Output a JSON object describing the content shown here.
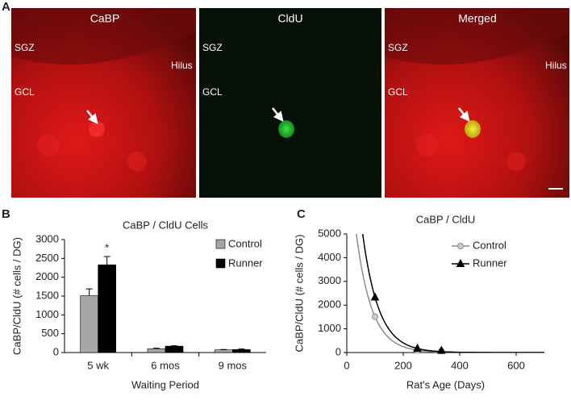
{
  "figure": {
    "panel_a": {
      "letter": "A",
      "images": [
        {
          "title": "CaBP",
          "labels": [
            "SGZ",
            "Hilus",
            "GCL"
          ]
        },
        {
          "title": "CldU",
          "labels": [
            "SGZ",
            "GCL"
          ]
        },
        {
          "title": "Merged",
          "labels": [
            "SGZ",
            "Hilus",
            "GCL"
          ]
        }
      ]
    },
    "panel_b_letter": "B",
    "panel_c_letter": "C"
  },
  "chart_data": [
    {
      "type": "bar",
      "title": "CaBP / CldU Cells",
      "y_label": "CaBP/CldU (# cells / DG)",
      "x_label": "Waiting Period",
      "categories": [
        "5 wk",
        "6 mos",
        "9 mos"
      ],
      "series": [
        {
          "name": "Control",
          "color": "#a6a6a6",
          "values": [
            1510,
            100,
            70
          ],
          "errors": [
            180,
            15,
            10
          ]
        },
        {
          "name": "Runner",
          "color": "#000000",
          "values": [
            2330,
            170,
            80
          ],
          "errors": [
            220,
            10,
            15
          ]
        }
      ],
      "annotation": "*",
      "ylim": [
        0,
        3000
      ],
      "yticks": [
        0,
        500,
        1000,
        1500,
        2000,
        2500,
        3000
      ],
      "legend": "top-right"
    },
    {
      "type": "line",
      "title": "CaBP / CldU",
      "y_label": "CaBP/CldU (# cells / DG)",
      "x_label": "Rat's Age (Days)",
      "series": [
        {
          "name": "Control",
          "color": "#8c8c8c",
          "marker": "circle",
          "x": [
            100,
            250,
            335
          ],
          "values": [
            1510,
            100,
            70
          ]
        },
        {
          "name": "Runner",
          "color": "#000000",
          "marker": "triangle",
          "x": [
            100,
            250,
            335
          ],
          "values": [
            2330,
            170,
            80
          ]
        }
      ],
      "xlim": [
        0,
        700
      ],
      "xticks": [
        0,
        200,
        400,
        600
      ],
      "ylim": [
        0,
        5000
      ],
      "yticks": [
        0,
        1000,
        2000,
        3000,
        4000,
        5000
      ],
      "legend": "top-right"
    }
  ]
}
